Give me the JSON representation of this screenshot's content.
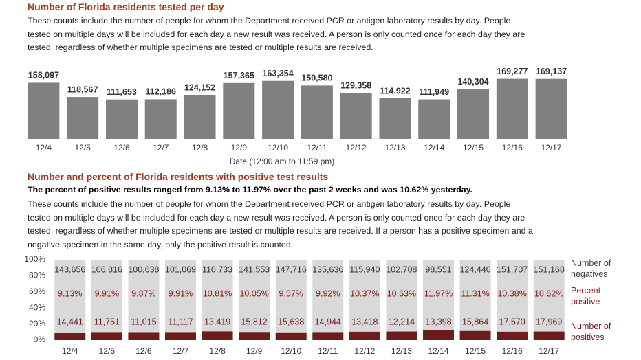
{
  "chart_data": [
    {
      "type": "bar",
      "title": "Number of Florida residents tested per day",
      "subtitle": "These counts include the number of people for whom the Department received PCR or antigen laboratory results by day. People tested on multiple days will be included for each day a new result was received. A person is only counted once for each day they are tested, regardless of whether multiple specimens are tested or multiple results are received.",
      "x_label": "Date (12:00 am to 11:59 pm)",
      "categories": [
        "12/4",
        "12/5",
        "12/6",
        "12/7",
        "12/8",
        "12/9",
        "12/10",
        "12/11",
        "12/12",
        "12/13",
        "12/14",
        "12/15",
        "12/16",
        "12/17"
      ],
      "values": [
        158097,
        118567,
        111653,
        112186,
        124152,
        157365,
        163354,
        150580,
        129358,
        114922,
        111949,
        140304,
        169277,
        169137
      ],
      "value_labels": [
        "158,097",
        "118,567",
        "111,653",
        "112,186",
        "124,152",
        "157,365",
        "163,354",
        "150,580",
        "129,358",
        "114,922",
        "111,949",
        "140,304",
        "169,277",
        "169,137"
      ],
      "color": "#808080",
      "ylim": [
        0,
        180000
      ]
    },
    {
      "type": "stacked_percent_bar",
      "title": "Number and percent of Florida residents with positive test results",
      "highlight": "The percent of positive results ranged from 9.13% to 11.97% over the past 2 weeks and was 10.62% yesterday.",
      "subtitle": "These counts include the number of people for whom the Department received PCR or antigen laboratory results by day. People tested on multiple days will be included for each day a new result was received. A person is only counted once for each day they are tested, regardless of whether multiple specimens are tested or multiple results are received. If a person has a positive specimen and a negative specimen in the same day, only the positive result is counted.",
      "categories": [
        "12/4",
        "12/5",
        "12/6",
        "12/7",
        "12/8",
        "12/9",
        "12/10",
        "12/11",
        "12/12",
        "12/13",
        "12/14",
        "12/15",
        "12/16",
        "12/17"
      ],
      "series": [
        {
          "name": "Number of positives",
          "color": "#6b1c1c",
          "values": [
            14441,
            11751,
            11015,
            11117,
            13419,
            15812,
            15638,
            14944,
            13418,
            12214,
            13398,
            15864,
            17570,
            17969
          ],
          "value_labels": [
            "14,441",
            "11,751",
            "11,015",
            "11,117",
            "13,419",
            "15,812",
            "15,638",
            "14,944",
            "13,418",
            "12,214",
            "13,398",
            "15,864",
            "17,570",
            "17,969"
          ]
        },
        {
          "name": "Number of negatives",
          "color": "#d9d9d9",
          "values": [
            143656,
            106816,
            100638,
            101069,
            110733,
            141553,
            147716,
            135636,
            115940,
            102708,
            98551,
            124440,
            151707,
            151168
          ],
          "value_labels": [
            "143,656",
            "106,816",
            "100,638",
            "101,069",
            "110,733",
            "141,553",
            "147,716",
            "135,636",
            "115,940",
            "102,708",
            "98,551",
            "124,440",
            "151,707",
            "151,168"
          ]
        },
        {
          "name": "Percent positive",
          "color": "#8b1a1a",
          "values": [
            9.13,
            9.91,
            9.87,
            9.91,
            10.81,
            10.05,
            9.57,
            9.92,
            10.37,
            10.63,
            11.97,
            11.31,
            10.38,
            10.62
          ],
          "value_labels": [
            "9.13%",
            "9.91%",
            "9.87%",
            "9.91%",
            "10.81%",
            "10.05%",
            "9.57%",
            "9.92%",
            "10.37%",
            "10.63%",
            "11.97%",
            "11.31%",
            "10.38%",
            "10.62%"
          ]
        }
      ],
      "ylim": [
        0,
        100
      ],
      "yticks": [
        {
          "value": 0,
          "label": "0%"
        },
        {
          "value": 20,
          "label": "20%"
        },
        {
          "value": 40,
          "label": "40%"
        },
        {
          "value": 60,
          "label": "60%"
        },
        {
          "value": 80,
          "label": "80%"
        },
        {
          "value": 100,
          "label": "100%"
        }
      ]
    }
  ]
}
